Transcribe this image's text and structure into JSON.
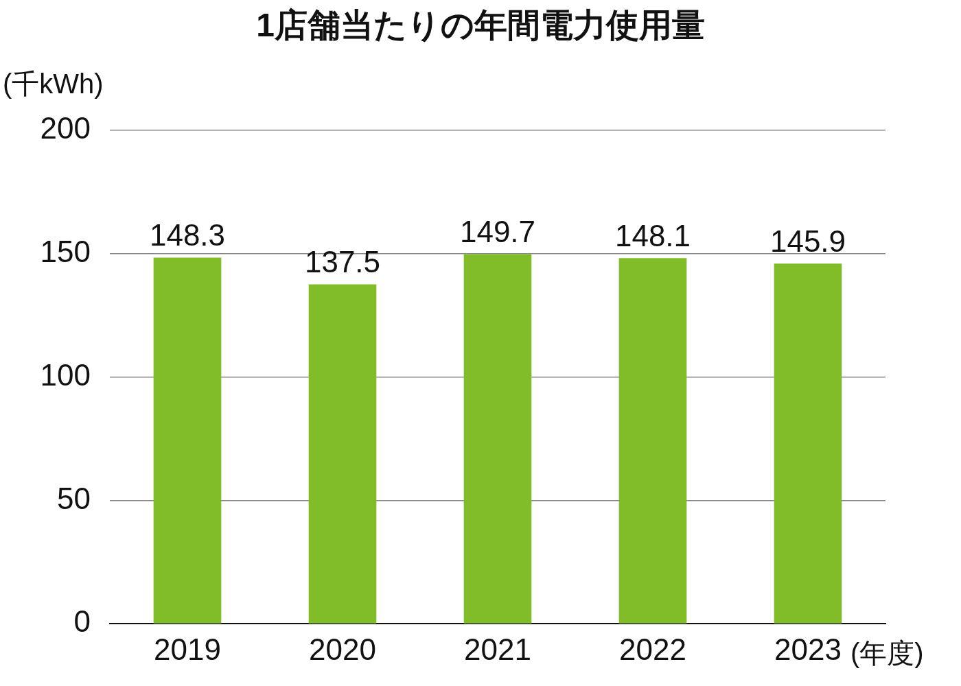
{
  "chart_data": {
    "type": "bar",
    "title": "1店舗当たりの年間電力使用量",
    "ylabel": "(千kWh)",
    "xlabel": "(年度)",
    "categories": [
      "2019",
      "2020",
      "2021",
      "2022",
      "2023"
    ],
    "values": [
      148.3,
      137.5,
      149.7,
      148.1,
      145.9
    ],
    "color": "#80bd28",
    "ylim": [
      0,
      200
    ],
    "yticks": [
      0,
      50,
      100,
      150,
      200
    ],
    "grid": "y",
    "data_labels": true,
    "legend": false
  }
}
